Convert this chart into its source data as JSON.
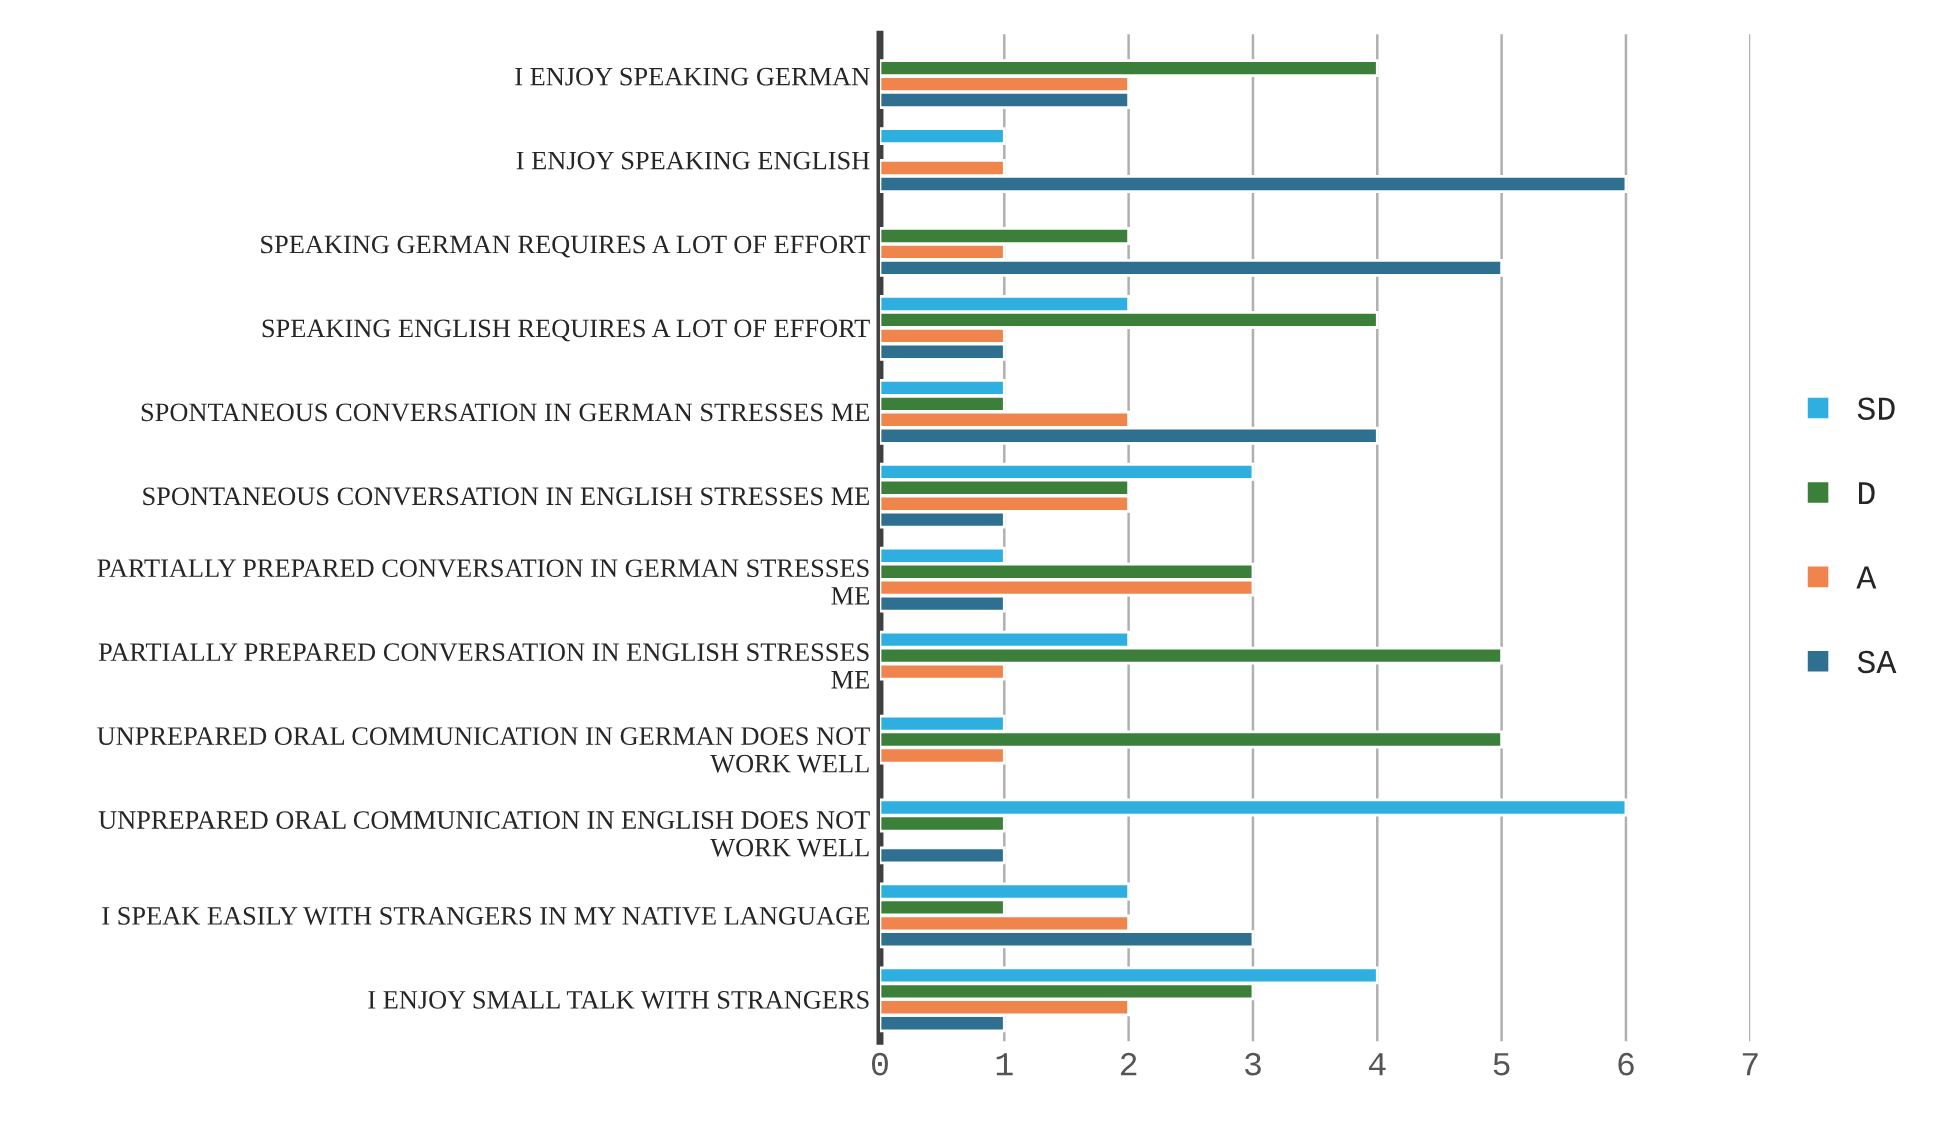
{
  "chart_data": {
    "type": "bar",
    "orientation": "horizontal",
    "categories": [
      "I ENJOY SPEAKING GERMAN",
      "I ENJOY SPEAKING ENGLISH",
      "SPEAKING GERMAN REQUIRES A LOT OF EFFORT",
      "SPEAKING ENGLISH REQUIRES A LOT OF EFFORT",
      "SPONTANEOUS CONVERSATION IN GERMAN STRESSES ME",
      "SPONTANEOUS CONVERSATION IN ENGLISH STRESSES ME",
      "PARTIALLY PREPARED CONVERSATION IN GERMAN STRESSES\nME",
      "PARTIALLY PREPARED CONVERSATION IN ENGLISH STRESSES\nME",
      "UNPREPARED ORAL COMMUNICATION IN GERMAN DOES NOT\nWORK WELL",
      "UNPREPARED ORAL COMMUNICATION IN ENGLISH DOES NOT\nWORK WELL",
      "I SPEAK EASILY WITH STRANGERS IN MY NATIVE LANGUAGE",
      "I ENJOY SMALL TALK WITH STRANGERS"
    ],
    "series": [
      {
        "name": "SD",
        "color": "#2eafe0",
        "values": [
          null,
          1,
          null,
          2,
          1,
          3,
          1,
          2,
          1,
          6,
          2,
          4
        ]
      },
      {
        "name": "D",
        "color": "#3b7f3b",
        "values": [
          4,
          null,
          2,
          4,
          1,
          2,
          3,
          5,
          5,
          1,
          1,
          3
        ]
      },
      {
        "name": "A",
        "color": "#ef844c",
        "values": [
          2,
          1,
          1,
          1,
          2,
          2,
          3,
          1,
          1,
          null,
          2,
          2
        ]
      },
      {
        "name": "SA",
        "color": "#2f6f8f",
        "values": [
          2,
          6,
          5,
          1,
          4,
          1,
          1,
          null,
          null,
          1,
          3,
          1
        ]
      }
    ],
    "xlim": [
      0,
      7
    ],
    "xticks": [
      0,
      1,
      2,
      3,
      4,
      5,
      6,
      7
    ],
    "grid": "x",
    "legend": "right"
  }
}
